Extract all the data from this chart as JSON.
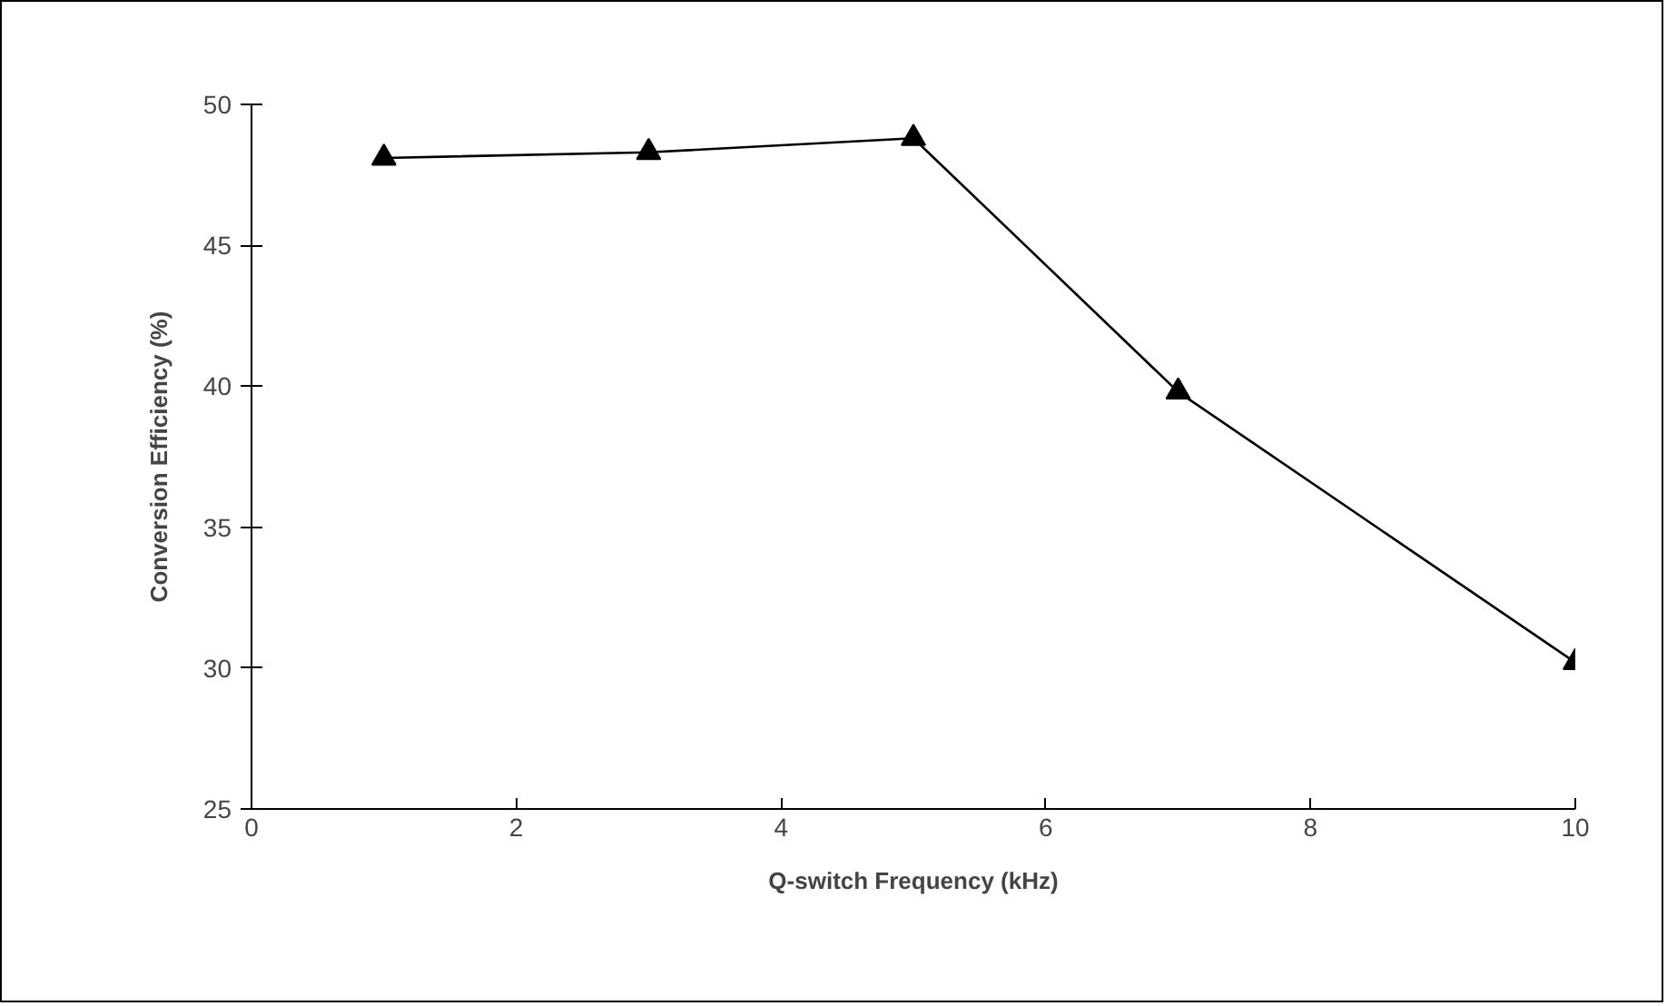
{
  "chart_data": {
    "type": "line",
    "xlabel": "Q-switch Frequency (kHz)",
    "ylabel": "Conversion Efficiency (%)",
    "x": [
      1,
      3,
      5,
      7,
      10
    ],
    "series": [
      {
        "color": "#000000",
        "values": [
          48.1,
          48.3,
          48.8,
          39.8,
          30.2
        ]
      }
    ],
    "marker": "triangle",
    "line_style": "solid",
    "grid": false,
    "xlim": [
      0,
      10
    ],
    "ylim": [
      25,
      50
    ],
    "xticks": [
      0,
      2,
      4,
      6,
      8,
      10
    ],
    "yticks": [
      25,
      30,
      35,
      40,
      45,
      50
    ]
  }
}
